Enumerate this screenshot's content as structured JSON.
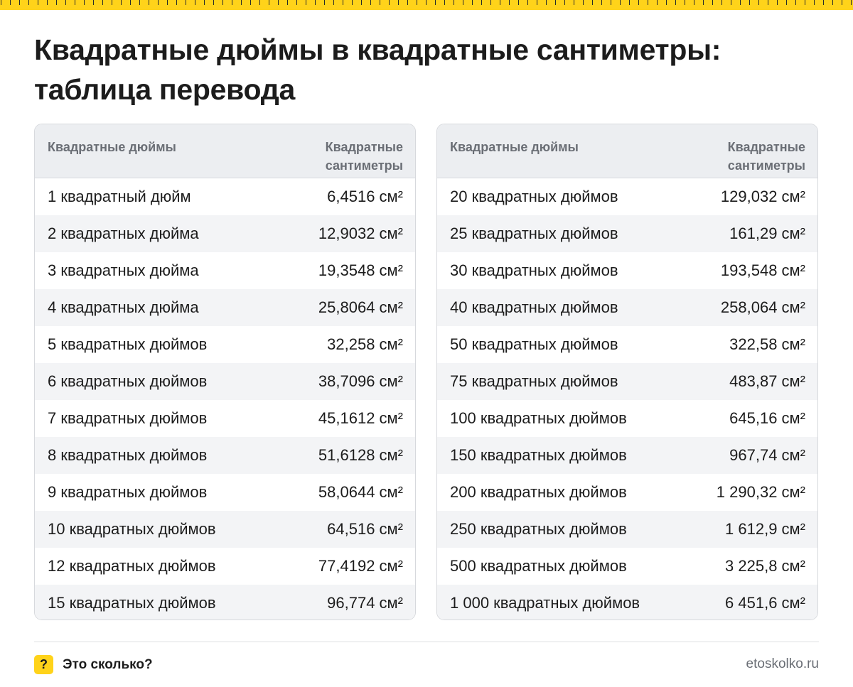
{
  "title": "Квадратные дюймы в квадратные сантиметры: таблица перевода",
  "columns": {
    "inches": "Квадратные дюймы",
    "cm": "Квадратные сантиметры"
  },
  "left_table": [
    {
      "inches": "1 квадратный дюйм",
      "cm": "6,4516 см²"
    },
    {
      "inches": "2 квадратных дюйма",
      "cm": "12,9032 см²"
    },
    {
      "inches": "3 квадратных дюйма",
      "cm": "19,3548 см²"
    },
    {
      "inches": "4 квадратных дюйма",
      "cm": "25,8064 см²"
    },
    {
      "inches": "5 квадратных дюймов",
      "cm": "32,258 см²"
    },
    {
      "inches": "6 квадратных дюймов",
      "cm": "38,7096 см²"
    },
    {
      "inches": "7 квадратных дюймов",
      "cm": "45,1612 см²"
    },
    {
      "inches": "8 квадратных дюймов",
      "cm": "51,6128 см²"
    },
    {
      "inches": "9 квадратных дюймов",
      "cm": "58,0644 см²"
    },
    {
      "inches": "10 квадратных дюймов",
      "cm": "64,516 см²"
    },
    {
      "inches": "12 квадратных дюймов",
      "cm": "77,4192 см²"
    },
    {
      "inches": "15 квадратных дюймов",
      "cm": "96,774 см²"
    }
  ],
  "right_table": [
    {
      "inches": "20 квадратных дюймов",
      "cm": "129,032 см²"
    },
    {
      "inches": "25 квадратных дюймов",
      "cm": "161,29 см²"
    },
    {
      "inches": "30 квадратных дюймов",
      "cm": "193,548 см²"
    },
    {
      "inches": "40 квадратных дюймов",
      "cm": "258,064 см²"
    },
    {
      "inches": "50 квадратных дюймов",
      "cm": "322,58 см²"
    },
    {
      "inches": "75 квадратных дюймов",
      "cm": "483,87 см²"
    },
    {
      "inches": "100 квадратных дюймов",
      "cm": "645,16 см²"
    },
    {
      "inches": "150 квадратных дюймов",
      "cm": "967,74 см²"
    },
    {
      "inches": "200 квадратных дюймов",
      "cm": "1 290,32 см²"
    },
    {
      "inches": "250 квадратных дюймов",
      "cm": "1 612,9 см²"
    },
    {
      "inches": "500 квадратных дюймов",
      "cm": "3 225,8 см²"
    },
    {
      "inches": "1 000 квадратных дюймов",
      "cm": "6 451,6 см²"
    }
  ],
  "footer": {
    "badge": "?",
    "brand": "Это сколько?",
    "site": "etoskolko.ru"
  },
  "colors": {
    "accent": "#ffd31a",
    "header_bg": "#eceef1",
    "stripe_bg": "#f3f4f6",
    "border": "#d7d9dd",
    "muted_text": "#6a6e75"
  }
}
